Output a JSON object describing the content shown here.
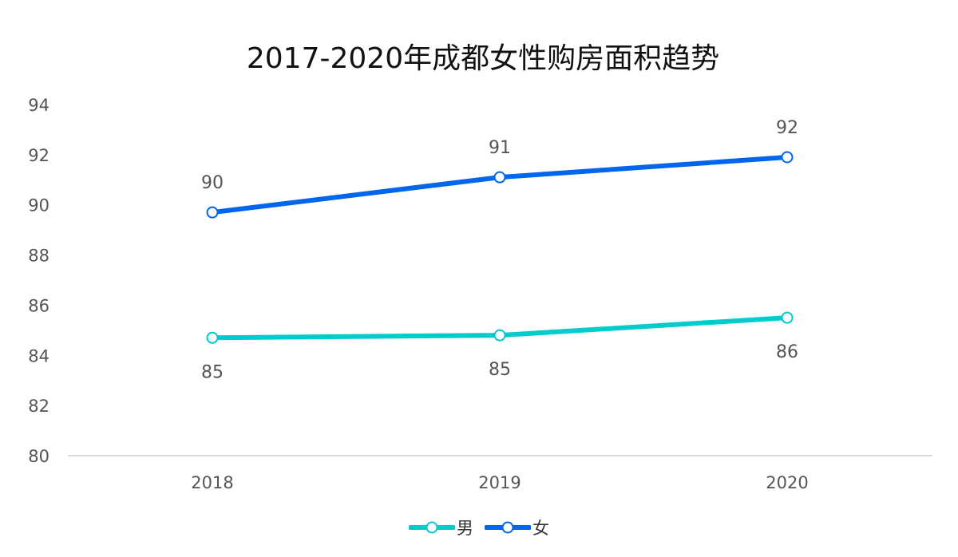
{
  "chart_data": {
    "type": "line",
    "title": "2017-2020年成都女性购房面积趋势",
    "categories": [
      "2018",
      "2019",
      "2020"
    ],
    "series": [
      {
        "name": "男",
        "values": [
          84.7,
          84.8,
          85.5
        ],
        "labels": [
          "85",
          "85",
          "86"
        ],
        "label_position": "below",
        "color": "#00CCCC"
      },
      {
        "name": "女",
        "values": [
          89.7,
          91.1,
          91.9
        ],
        "labels": [
          "90",
          "91",
          "92"
        ],
        "label_position": "above",
        "color": "#0066EE"
      }
    ],
    "ylim": [
      80,
      94
    ],
    "yticks": [
      "80",
      "82",
      "84",
      "86",
      "88",
      "90",
      "92",
      "94"
    ],
    "xlabel": "",
    "ylabel": "",
    "grid": false,
    "legend_position": "bottom-center"
  }
}
